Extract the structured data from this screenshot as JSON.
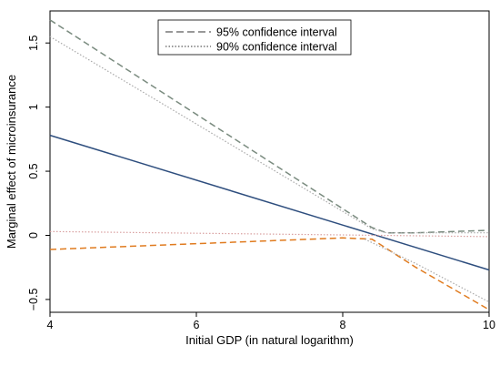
{
  "chart_data": {
    "type": "line",
    "title": "",
    "xlabel": "Initial GDP (in natural logarithm)",
    "ylabel": "Marginal effect of microinsurance",
    "xlim": [
      4,
      10
    ],
    "ylim": [
      -0.6,
      1.75
    ],
    "xticks": [
      4,
      6,
      8,
      10
    ],
    "xtick_labels": [
      "4",
      "6",
      "8",
      "10"
    ],
    "yticks": [
      -0.5,
      0,
      0.5,
      1,
      1.5
    ],
    "ytick_labels": [
      "−0.5",
      "0",
      "0.5",
      "1",
      "1.5"
    ],
    "grid": false,
    "legend": {
      "placement": "top-center",
      "entries": [
        {
          "label": "95% confidence interval",
          "style": "dashed"
        },
        {
          "label": "90% confidence interval",
          "style": "dotted"
        }
      ]
    },
    "series": [
      {
        "role": "marginal-effect",
        "color": "#2e4e7e",
        "style": "solid",
        "x": [
          4,
          10
        ],
        "y": [
          0.78,
          -0.27
        ]
      },
      {
        "role": "ci95-upper",
        "color": "#7a8b7f",
        "style": "dashed",
        "x": [
          4,
          8.4,
          8.6,
          9,
          10
        ],
        "y": [
          1.68,
          0.06,
          0.02,
          0.02,
          0.04
        ]
      },
      {
        "role": "ci95-lower",
        "color": "#e07b1f",
        "style": "dashed",
        "x": [
          4,
          8,
          8.4,
          9,
          10
        ],
        "y": [
          -0.11,
          -0.02,
          -0.03,
          -0.25,
          -0.58
        ]
      },
      {
        "role": "ci90-upper",
        "color": "#a8a8a8",
        "style": "dotted",
        "x": [
          4,
          8.4,
          8.6,
          10
        ],
        "y": [
          1.55,
          0.05,
          0.02,
          0.02
        ]
      },
      {
        "role": "ci90-lower",
        "color": "#d9a0a0",
        "style": "dotted",
        "x": [
          4,
          10
        ],
        "y": [
          0.03,
          -0.01
        ]
      },
      {
        "role": "ci90-lower-tail",
        "color": "#a8a8a8",
        "style": "dotted",
        "x": [
          8.3,
          9,
          10
        ],
        "y": [
          -0.03,
          -0.22,
          -0.52
        ]
      }
    ]
  }
}
